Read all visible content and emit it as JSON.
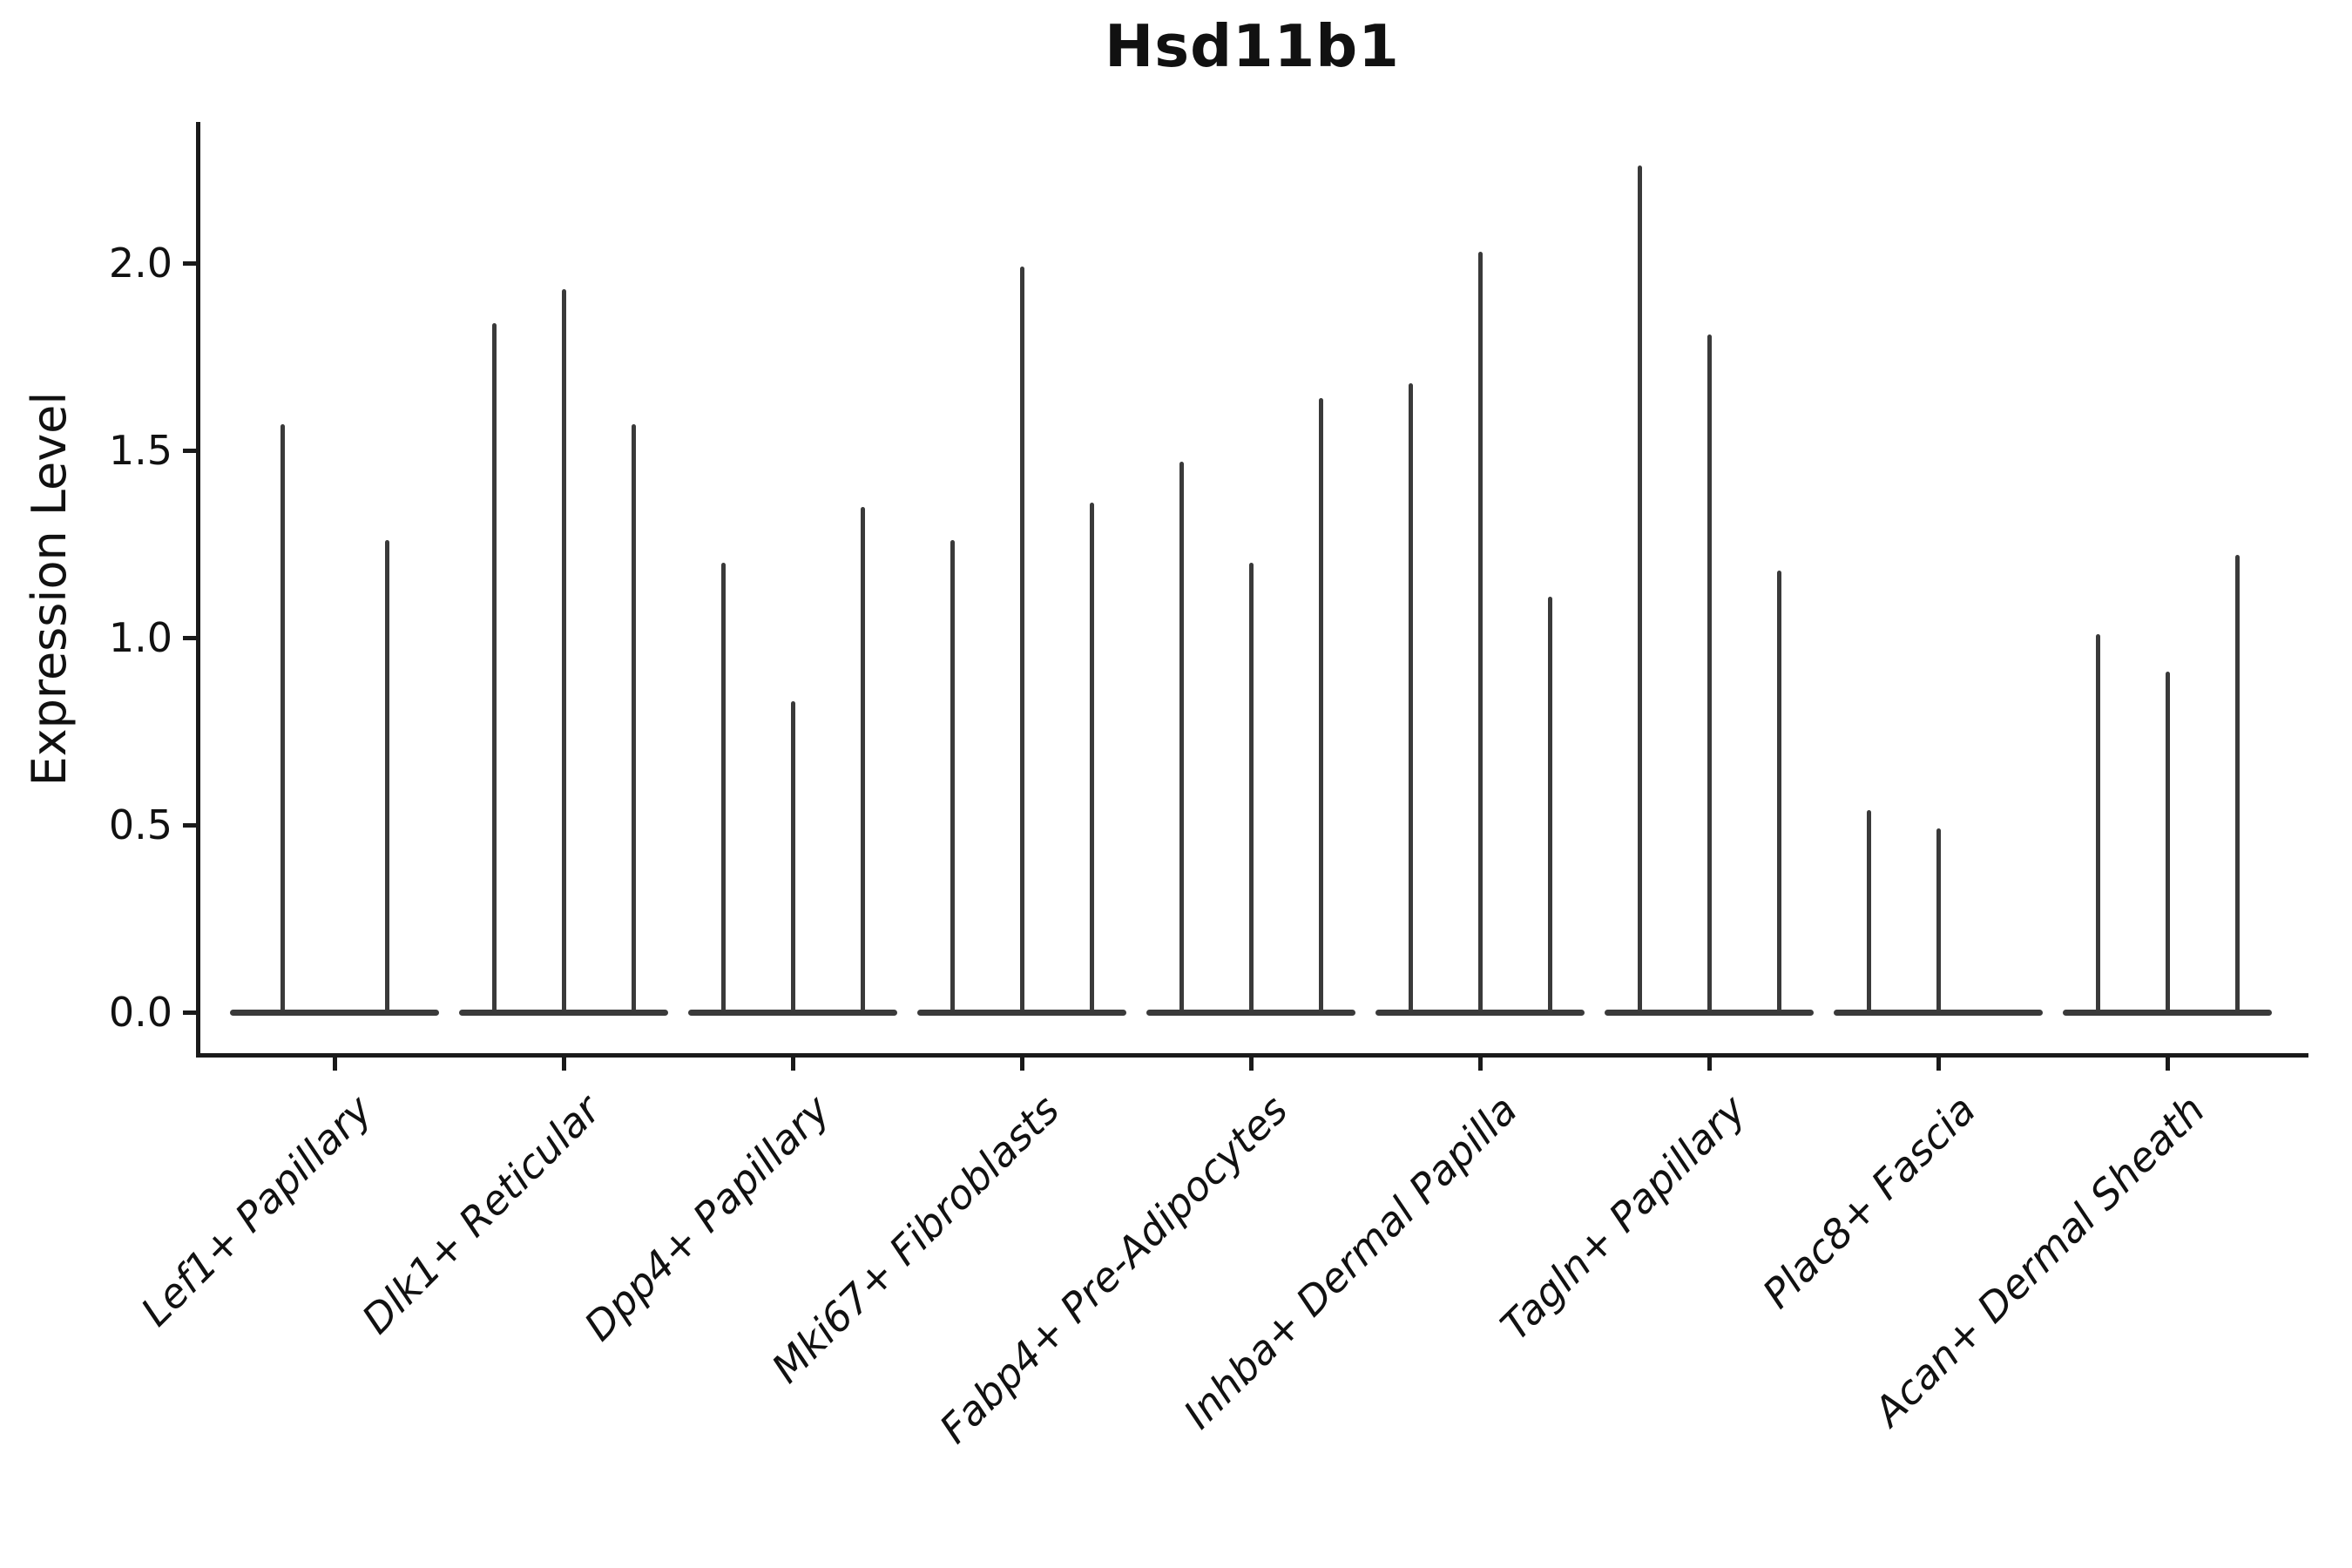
{
  "figure": {
    "title": "Hsd11b1",
    "ylabel": "Expression Level"
  },
  "chart_data": {
    "type": "violin",
    "title": "Hsd11b1",
    "xlabel": "",
    "ylabel": "Expression Level",
    "ytick_labels": [
      "0.0",
      "0.5",
      "1.0",
      "1.5",
      "2.0"
    ],
    "ytick_values": [
      0.0,
      0.5,
      1.0,
      1.5,
      2.0
    ],
    "ylim": [
      -0.11,
      2.38
    ],
    "grid": false,
    "legend_position": "none",
    "style": "thin spike-shaped violins, dark gray on white, only left and bottom spines",
    "categories": [
      "Lef1+ Papillary",
      "Dlk1+ Reticular",
      "Dpp4+ Papillary",
      "Mki67+ Fibroblasts",
      "Fabp4+ Pre-Adipocytes",
      "Inhba+ Dermal Papilla",
      "Tagln+ Papillary",
      "Plac8+ Fascia",
      "Acan+ Dermal Sheath"
    ],
    "groups": [
      {
        "category": "Lef1+ Papillary",
        "violin_max_values": [
          1.57,
          1.26
        ]
      },
      {
        "category": "Dlk1+ Reticular",
        "violin_max_values": [
          1.84,
          1.93,
          1.57
        ]
      },
      {
        "category": "Dpp4+ Papillary",
        "violin_max_values": [
          1.2,
          0.83,
          1.35
        ]
      },
      {
        "category": "Mki67+ Fibroblasts",
        "violin_max_values": [
          1.26,
          1.99,
          1.36
        ]
      },
      {
        "category": "Fabp4+ Pre-Adipocytes",
        "violin_max_values": [
          1.47,
          1.2,
          1.64
        ]
      },
      {
        "category": "Inhba+ Dermal Papilla",
        "violin_max_values": [
          1.68,
          2.03,
          1.11
        ]
      },
      {
        "category": "Tagln+ Papillary",
        "violin_max_values": [
          2.26,
          1.81,
          1.18
        ]
      },
      {
        "category": "Plac8+ Fascia",
        "violin_max_values": [
          0.54,
          0.49,
          0.0
        ]
      },
      {
        "category": "Acan+ Dermal Sheath",
        "violin_max_values": [
          1.01,
          0.91,
          1.22
        ]
      }
    ]
  },
  "colors": {
    "violin": "#3a3a3a",
    "axis": "#1a1a1a",
    "text": "#111111",
    "background": "#ffffff"
  }
}
